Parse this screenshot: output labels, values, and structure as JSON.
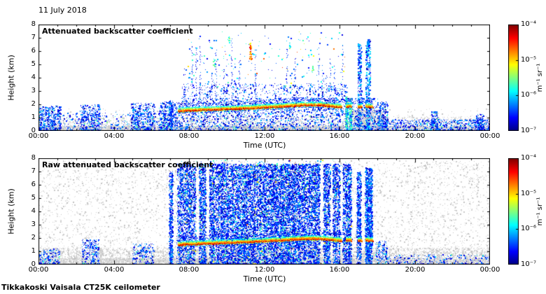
{
  "page": {
    "date_label": "11 July 2018",
    "footer_label": "Tikkakoski Vaisala CT25K ceilometer",
    "background": "#ffffff"
  },
  "chart_data": [
    {
      "type": "heatmap",
      "title": "Attenuated backscatter coefficient",
      "xlabel": "Time (UTC)",
      "ylabel": "Height (km)",
      "xlim_hours": [
        0,
        24
      ],
      "ylim_km": [
        0,
        8
      ],
      "xtick_hours": [
        0,
        4,
        8,
        12,
        16,
        20,
        24
      ],
      "xtick_labels": [
        "00:00",
        "04:00",
        "08:00",
        "12:00",
        "16:00",
        "20:00",
        "00:00"
      ],
      "ytick_values": [
        0,
        1,
        2,
        3,
        4,
        5,
        6,
        7,
        8
      ],
      "grid": false,
      "colorbar": {
        "position": "right",
        "scale": "log",
        "colormap": "jet",
        "min": 1e-07,
        "max": 0.0001,
        "unit": "m⁻¹ sr⁻¹",
        "tick_labels": [
          "10⁻⁴",
          "10⁻⁵",
          "10⁻⁶",
          "10⁻⁷"
        ]
      },
      "cloud_base": {
        "description": "Cloud base layer detected between about 07:25 and 17:45 UTC near 1.5-2 km",
        "segments_hours": [
          [
            7.4,
            16.1
          ],
          [
            16.32,
            16.62
          ],
          [
            16.95,
            17.15
          ],
          [
            17.38,
            17.75
          ]
        ],
        "height_profile_km": [
          [
            7.4,
            1.5
          ],
          [
            8,
            1.55
          ],
          [
            9,
            1.6
          ],
          [
            10,
            1.65
          ],
          [
            11,
            1.7
          ],
          [
            12,
            1.78
          ],
          [
            13,
            1.85
          ],
          [
            14,
            1.95
          ],
          [
            15,
            1.95
          ],
          [
            15.7,
            1.85
          ],
          [
            16.1,
            1.8
          ],
          [
            16.5,
            1.85
          ],
          [
            17.0,
            1.8
          ],
          [
            17.4,
            1.85
          ],
          [
            17.75,
            1.8
          ]
        ]
      },
      "render": {
        "seed": 7,
        "gray_regions": [
          {
            "t": [
              0,
              24
            ],
            "h": [
              0,
              0.4
            ],
            "n": 6500
          },
          {
            "t": [
              0,
              24
            ],
            "h": [
              0.3,
              1.1
            ],
            "n": 1400
          },
          {
            "t": [
              16.7,
              18.3
            ],
            "h": [
              0,
              1.6
            ],
            "n": 800
          },
          {
            "t": [
              0,
              24
            ],
            "h": [
              1.0,
              1.7
            ],
            "n": 250
          }
        ],
        "blue_regions": [
          {
            "t": [
              0,
              1.15
            ],
            "h": [
              0,
              1.9
            ],
            "n": 420
          },
          {
            "t": [
              2.2,
              3.25
            ],
            "h": [
              0,
              2.0
            ],
            "n": 380
          },
          {
            "t": [
              4.9,
              6.15
            ],
            "h": [
              0,
              2.1
            ],
            "n": 420
          },
          {
            "t": [
              6.4,
              7.35
            ],
            "h": [
              0,
              2.2
            ],
            "n": 350
          },
          {
            "t": [
              0,
              7.3
            ],
            "h": [
              0,
              1.4
            ],
            "n": 350
          },
          {
            "t": [
              7.35,
              18.0
            ],
            "h": [
              0,
              2.5
            ],
            "n": 2400
          },
          {
            "t": [
              7.6,
              16.4
            ],
            "h": [
              2.5,
              3.6
            ],
            "n": 450
          },
          {
            "t": [
              18,
              24
            ],
            "h": [
              0,
              0.9
            ],
            "n": 650
          },
          {
            "t": [
              18.0,
              18.55
            ],
            "h": [
              0,
              2.2
            ],
            "n": 260
          },
          {
            "t": [
              20.85,
              21.2
            ],
            "h": [
              0,
              1.5
            ],
            "n": 130
          },
          {
            "t": [
              23.25,
              23.65
            ],
            "h": [
              0,
              1.3
            ],
            "n": 110
          }
        ],
        "columns": [
          {
            "t": [
              6.95,
              7.1
            ],
            "h": [
              0,
              2.3
            ],
            "n": 140,
            "v": [
              0.05,
              0.3
            ]
          },
          {
            "t": [
              16.3,
              16.42
            ],
            "h": [
              0,
              2.6
            ],
            "n": 260,
            "v": [
              0.15,
              0.55
            ]
          },
          {
            "t": [
              16.5,
              16.62
            ],
            "h": [
              0,
              2.5
            ],
            "n": 240,
            "v": [
              0.15,
              0.55
            ]
          },
          {
            "t": [
              16.95,
              17.15
            ],
            "h": [
              0,
              6.6
            ],
            "n": 330,
            "v": [
              0.05,
              0.35
            ]
          },
          {
            "t": [
              17.38,
              17.62
            ],
            "h": [
              0,
              6.9
            ],
            "n": 420,
            "v": [
              0.05,
              0.4
            ]
          }
        ],
        "spikes": {
          "t": [
            7.7,
            16.3
          ],
          "step": 0.21,
          "p": 0.5,
          "h_base": 2.2,
          "h_top": [
            2.8,
            7.2
          ]
        },
        "specks": {
          "t": [
            7.8,
            16.3
          ],
          "h": [
            3.2,
            7.5
          ],
          "n": 190,
          "warm_p": 0.12
        },
        "streaks": [
          {
            "t": 11.25,
            "h": [
              5.4,
              6.65
            ],
            "n": 46,
            "v": [
              0.6,
              0.9
            ]
          },
          {
            "t": 9.3,
            "h": [
              4.9,
              5.4
            ],
            "n": 14,
            "v": [
              0.35,
              0.55
            ]
          },
          {
            "t": 13.35,
            "h": [
              6.2,
              6.7
            ],
            "n": 12,
            "v": [
              0.3,
              0.5
            ]
          },
          {
            "t": 14.55,
            "h": [
              4.4,
              4.9
            ],
            "n": 12,
            "v": [
              0.35,
              0.6
            ]
          },
          {
            "t": 10.1,
            "h": [
              6.6,
              7.1
            ],
            "n": 10,
            "v": [
              0.3,
              0.55
            ]
          }
        ]
      }
    },
    {
      "type": "heatmap",
      "title": "Raw attenuated backscatter coefficient",
      "xlabel": "Time (UTC)",
      "ylabel": "Height (km)",
      "xlim_hours": [
        0,
        24
      ],
      "ylim_km": [
        0,
        8
      ],
      "xtick_hours": [
        0,
        4,
        8,
        12,
        16,
        20,
        24
      ],
      "xtick_labels": [
        "00:00",
        "04:00",
        "08:00",
        "12:00",
        "16:00",
        "20:00",
        "00:00"
      ],
      "ytick_values": [
        0,
        1,
        2,
        3,
        4,
        5,
        6,
        7,
        8
      ],
      "grid": false,
      "colorbar": {
        "position": "right",
        "scale": "log",
        "colormap": "jet",
        "min": 1e-07,
        "max": 0.0001,
        "unit": "m⁻¹ sr⁻¹",
        "tick_labels": [
          "10⁻⁴",
          "10⁻⁵",
          "10⁻⁶",
          "10⁻⁷"
        ]
      },
      "cloud_base": {
        "description": "Same cloud base layer as above, embedded in full-depth raw noise from about 07:20 to 16:40 UTC",
        "segments_hours": [
          [
            7.4,
            16.1
          ],
          [
            16.32,
            16.62
          ],
          [
            16.95,
            17.15
          ],
          [
            17.38,
            17.75
          ]
        ],
        "height_profile_km": [
          [
            7.4,
            1.5
          ],
          [
            8,
            1.55
          ],
          [
            9,
            1.6
          ],
          [
            10,
            1.65
          ],
          [
            11,
            1.7
          ],
          [
            12,
            1.78
          ],
          [
            13,
            1.85
          ],
          [
            14,
            1.95
          ],
          [
            15,
            1.95
          ],
          [
            15.7,
            1.85
          ],
          [
            16.1,
            1.8
          ],
          [
            16.5,
            1.85
          ],
          [
            17.0,
            1.8
          ],
          [
            17.4,
            1.85
          ],
          [
            17.75,
            1.8
          ]
        ]
      },
      "render": {
        "seed": 23,
        "gray_regions": [
          {
            "t": [
              0,
              24
            ],
            "h": [
              0,
              7.85
            ],
            "n": 5200
          },
          {
            "t": [
              0,
              24
            ],
            "h": [
              0,
              1.3
            ],
            "n": 4200
          },
          {
            "t": [
              0,
              24
            ],
            "h": [
              0,
              0.5
            ],
            "n": 3800
          }
        ],
        "blue_regions": [
          {
            "t": [
              0,
              1.1
            ],
            "h": [
              0,
              1.2
            ],
            "n": 200
          },
          {
            "t": [
              2.3,
              3.2
            ],
            "h": [
              0,
              1.9
            ],
            "n": 260
          },
          {
            "t": [
              5.0,
              6.1
            ],
            "h": [
              0,
              1.6
            ],
            "n": 200
          },
          {
            "t": [
              17.9,
              18.5
            ],
            "h": [
              0,
              1.8
            ],
            "n": 150
          },
          {
            "t": [
              18.5,
              24
            ],
            "h": [
              0,
              0.8
            ],
            "n": 250
          }
        ],
        "block": {
          "t": [
            7.33,
            16.62
          ],
          "h": [
            0,
            7.6
          ],
          "n": 26000,
          "gaps": [
            [
              8.33,
              8.52
            ],
            [
              8.88,
              9.06
            ],
            [
              14.93,
              15.12
            ],
            [
              15.48,
              15.62
            ],
            [
              16.0,
              16.15
            ]
          ],
          "cyan_p": 0.08,
          "warm_p": 0.012
        },
        "columns": [
          {
            "t": [
              6.93,
              7.12
            ],
            "h": [
              0,
              7.0
            ],
            "n": 520,
            "v": [
              0.05,
              0.3
            ]
          },
          {
            "t": [
              16.9,
              17.12
            ],
            "h": [
              0,
              7.0
            ],
            "n": 540,
            "v": [
              0.05,
              0.3
            ]
          },
          {
            "t": [
              17.35,
              17.72
            ],
            "h": [
              0,
              7.3
            ],
            "n": 1250,
            "v": [
              0.05,
              0.35
            ]
          }
        ],
        "specks": {
          "t": [
            7.5,
            16.5
          ],
          "h": [
            7.3,
            7.9
          ],
          "n": 60,
          "warm_p": 0.05
        },
        "streaks": []
      }
    }
  ]
}
